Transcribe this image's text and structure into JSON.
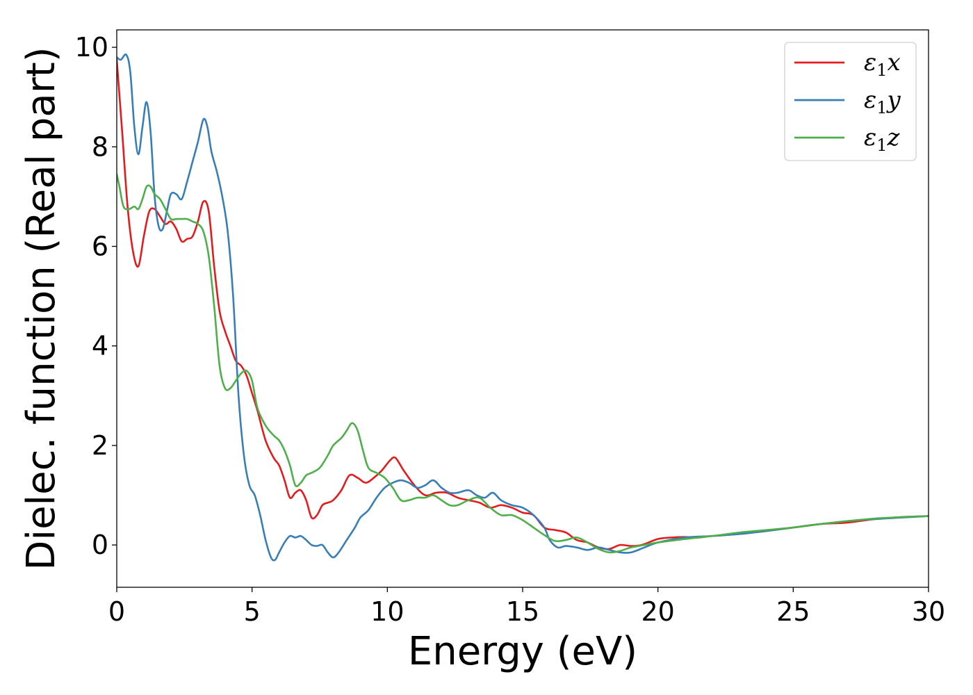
{
  "chart_data": {
    "type": "line",
    "xlabel": "Energy (eV)",
    "ylabel": "Dielec. function (Real part)",
    "xlim": [
      0,
      30
    ],
    "ylim": [
      -0.85,
      10.35
    ],
    "xticks": [
      0,
      5,
      10,
      15,
      20,
      25,
      30
    ],
    "yticks": [
      0,
      2,
      4,
      6,
      8,
      10
    ],
    "grid": false,
    "legend_position": "top-right",
    "series": [
      {
        "name": "ε1x",
        "label_base": "ε",
        "label_sub": "1",
        "label_tail": "x",
        "color": "#e41a1c",
        "x": [
          0,
          0.2,
          0.4,
          0.6,
          0.8,
          1.0,
          1.2,
          1.4,
          1.6,
          1.8,
          2.0,
          2.2,
          2.4,
          2.6,
          2.8,
          3.0,
          3.2,
          3.4,
          3.6,
          3.8,
          4.0,
          4.2,
          4.4,
          4.6,
          4.8,
          5.0,
          5.2,
          5.5,
          5.8,
          6.0,
          6.2,
          6.4,
          6.6,
          6.8,
          7.0,
          7.2,
          7.4,
          7.6,
          7.8,
          8.0,
          8.3,
          8.6,
          8.9,
          9.2,
          9.5,
          9.8,
          10.1,
          10.3,
          10.6,
          11.0,
          11.4,
          11.8,
          12.2,
          12.6,
          13.0,
          13.4,
          13.8,
          14.2,
          14.6,
          15.0,
          15.4,
          15.8,
          16.2,
          16.6,
          17.0,
          17.4,
          17.8,
          18.2,
          18.6,
          19.0,
          19.4,
          20.0,
          20.5,
          21.0,
          21.5,
          22.0,
          23.0,
          24.0,
          25.0,
          26.0,
          27.0,
          28.0,
          29.0,
          30.0
        ],
        "y": [
          9.75,
          8.3,
          6.8,
          5.9,
          5.6,
          6.2,
          6.7,
          6.75,
          6.6,
          6.45,
          6.5,
          6.35,
          6.1,
          6.15,
          6.2,
          6.5,
          6.9,
          6.7,
          5.6,
          4.7,
          4.3,
          4.0,
          3.7,
          3.6,
          3.4,
          3.05,
          2.7,
          2.1,
          1.75,
          1.6,
          1.3,
          0.95,
          1.05,
          1.1,
          0.9,
          0.55,
          0.6,
          0.8,
          0.85,
          0.9,
          1.1,
          1.4,
          1.35,
          1.25,
          1.35,
          1.5,
          1.7,
          1.75,
          1.5,
          1.2,
          1.0,
          1.05,
          1.05,
          0.95,
          0.9,
          0.85,
          0.75,
          0.8,
          0.75,
          0.65,
          0.6,
          0.35,
          0.3,
          0.25,
          0.1,
          0.05,
          -0.05,
          -0.08,
          0.0,
          -0.02,
          0.0,
          0.12,
          0.15,
          0.16,
          0.15,
          0.18,
          0.22,
          0.28,
          0.35,
          0.42,
          0.45,
          0.52,
          0.56,
          0.58
        ]
      },
      {
        "name": "ε1y",
        "label_base": "ε",
        "label_sub": "1",
        "label_tail": "y",
        "color": "#377eb8",
        "x": [
          0,
          0.15,
          0.35,
          0.5,
          0.65,
          0.8,
          0.95,
          1.1,
          1.25,
          1.4,
          1.55,
          1.7,
          1.85,
          2.0,
          2.2,
          2.4,
          2.6,
          2.8,
          3.0,
          3.2,
          3.35,
          3.5,
          3.7,
          3.9,
          4.1,
          4.3,
          4.5,
          4.7,
          4.9,
          5.1,
          5.3,
          5.5,
          5.7,
          5.85,
          6.0,
          6.2,
          6.4,
          6.6,
          6.8,
          7.0,
          7.2,
          7.4,
          7.6,
          7.8,
          8.0,
          8.2,
          8.5,
          8.8,
          9.0,
          9.3,
          9.6,
          9.9,
          10.2,
          10.5,
          10.8,
          11.1,
          11.4,
          11.7,
          12.0,
          12.3,
          12.6,
          13.0,
          13.3,
          13.6,
          13.9,
          14.2,
          14.6,
          15.0,
          15.4,
          15.8,
          16.0,
          16.3,
          16.6,
          17.0,
          17.4,
          17.8,
          18.2,
          18.6,
          19.0,
          19.5,
          20.0,
          21.0,
          22.0,
          23.0,
          24.0,
          25.0,
          26.0,
          27.0,
          28.0,
          29.0,
          30.0
        ],
        "y": [
          9.8,
          9.75,
          9.85,
          9.5,
          8.4,
          7.85,
          8.4,
          8.9,
          8.3,
          7.0,
          6.4,
          6.35,
          6.7,
          7.05,
          7.05,
          6.95,
          7.3,
          7.7,
          8.1,
          8.55,
          8.4,
          7.9,
          7.5,
          7.0,
          6.3,
          5.0,
          3.0,
          1.8,
          1.2,
          1.0,
          0.6,
          0.1,
          -0.25,
          -0.3,
          -0.15,
          0.05,
          0.18,
          0.15,
          0.18,
          0.1,
          0.0,
          -0.02,
          0.0,
          -0.15,
          -0.25,
          -0.15,
          0.1,
          0.35,
          0.55,
          0.7,
          0.95,
          1.15,
          1.25,
          1.3,
          1.25,
          1.15,
          1.2,
          1.3,
          1.15,
          1.05,
          1.05,
          1.1,
          1.0,
          0.95,
          1.05,
          0.9,
          0.8,
          0.75,
          0.6,
          0.35,
          0.1,
          -0.05,
          -0.02,
          -0.05,
          -0.1,
          -0.05,
          -0.1,
          -0.15,
          -0.15,
          -0.05,
          0.05,
          0.15,
          0.18,
          0.22,
          0.28,
          0.35,
          0.42,
          0.48,
          0.52,
          0.55,
          0.58
        ]
      },
      {
        "name": "ε1z",
        "label_base": "ε",
        "label_sub": "1",
        "label_tail": "z",
        "color": "#4daf4a",
        "x": [
          0,
          0.1,
          0.25,
          0.45,
          0.65,
          0.8,
          0.95,
          1.1,
          1.25,
          1.4,
          1.6,
          1.8,
          2.0,
          2.2,
          2.4,
          2.6,
          2.8,
          3.0,
          3.2,
          3.4,
          3.6,
          3.8,
          4.0,
          4.2,
          4.4,
          4.6,
          4.8,
          5.0,
          5.2,
          5.5,
          5.8,
          6.0,
          6.2,
          6.4,
          6.6,
          6.8,
          7.0,
          7.2,
          7.5,
          7.8,
          8.0,
          8.3,
          8.5,
          8.7,
          8.9,
          9.1,
          9.3,
          9.6,
          9.9,
          10.2,
          10.5,
          10.8,
          11.1,
          11.4,
          11.7,
          12.0,
          12.3,
          12.6,
          13.0,
          13.4,
          13.8,
          14.2,
          14.6,
          15.0,
          15.4,
          15.8,
          16.2,
          16.6,
          17.0,
          17.4,
          17.8,
          18.2,
          18.6,
          19.0,
          19.5,
          20.0,
          21.0,
          22.0,
          23.0,
          24.0,
          25.0,
          26.0,
          27.0,
          28.0,
          29.0,
          30.0
        ],
        "y": [
          7.45,
          7.2,
          6.8,
          6.75,
          6.8,
          6.75,
          6.95,
          7.2,
          7.2,
          7.05,
          6.95,
          6.75,
          6.55,
          6.55,
          6.55,
          6.55,
          6.5,
          6.45,
          6.3,
          5.8,
          4.8,
          3.6,
          3.15,
          3.15,
          3.3,
          3.45,
          3.5,
          3.3,
          2.75,
          2.4,
          2.2,
          2.1,
          1.9,
          1.6,
          1.2,
          1.25,
          1.4,
          1.45,
          1.55,
          1.8,
          2.0,
          2.15,
          2.3,
          2.45,
          2.3,
          1.9,
          1.55,
          1.45,
          1.35,
          1.15,
          0.9,
          0.9,
          0.95,
          0.95,
          1.0,
          0.9,
          0.8,
          0.8,
          0.9,
          0.95,
          0.75,
          0.6,
          0.6,
          0.5,
          0.35,
          0.2,
          0.08,
          0.1,
          0.15,
          0.05,
          -0.08,
          -0.15,
          -0.12,
          -0.05,
          0.0,
          0.05,
          0.12,
          0.18,
          0.25,
          0.3,
          0.35,
          0.42,
          0.48,
          0.53,
          0.56,
          0.58
        ]
      }
    ]
  }
}
